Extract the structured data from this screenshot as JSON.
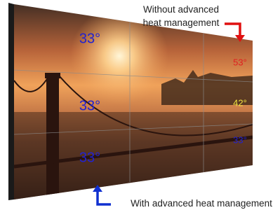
{
  "captions": {
    "top": [
      "Without advanced",
      "heat management"
    ],
    "bottom": "With advanced heat management"
  },
  "temperatures": {
    "with_heat_management": [
      "33°",
      "33°",
      "33°"
    ],
    "without_heat_management": [
      "53°",
      "42°",
      "33°"
    ]
  }
}
